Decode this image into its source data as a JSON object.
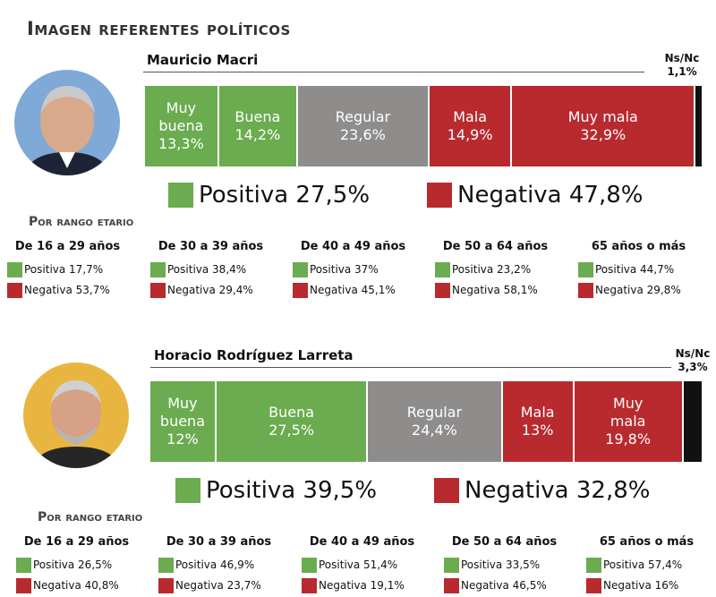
{
  "title": "Imagen referentes políticos",
  "colors": {
    "green": "#6aac4f",
    "gray": "#8f8c8c",
    "red": "#b82a2e",
    "black": "#111111"
  },
  "age_header": "Por rango etario",
  "chart_data": [
    {
      "type": "bar",
      "title": "Mauricio Macri",
      "categories": [
        "Muy buena",
        "Buena",
        "Regular",
        "Mala",
        "Muy mala",
        "Ns/Nc"
      ],
      "values": [
        13.3,
        14.2,
        23.6,
        14.9,
        32.9,
        1.1
      ],
      "labels": [
        "Muy\nbuena\n13,3%",
        "Buena\n14,2%",
        "Regular\n23,6%",
        "Mala\n14,9%",
        "Muy mala\n32,9%",
        ""
      ],
      "nsnc_label": "Ns/Nc\n1,1%",
      "summary": {
        "positive": "Positiva 27,5%",
        "negative": "Negativa 47,8%",
        "positive_value": 27.5,
        "negative_value": 47.8
      },
      "age_groups": [
        {
          "label": "De 16 a 29 años",
          "positive": "Positiva 17,7%",
          "negative": "Negativa 53,7%",
          "positive_value": 17.7,
          "negative_value": 53.7
        },
        {
          "label": "De 30 a 39 años",
          "positive": "Positiva 38,4%",
          "negative": "Negativa 29,4%",
          "positive_value": 38.4,
          "negative_value": 29.4
        },
        {
          "label": "De 40 a 49 años",
          "positive": "Positiva 37%",
          "negative": "Negativa 45,1%",
          "positive_value": 37,
          "negative_value": 45.1
        },
        {
          "label": "De 50 a 64 años",
          "positive": "Positiva 23,2%",
          "negative": "Negativa 58,1%",
          "positive_value": 23.2,
          "negative_value": 58.1
        },
        {
          "label": "65 años o más",
          "positive": "Positiva 44,7%",
          "negative": "Negativa 29,8%",
          "positive_value": 44.7,
          "negative_value": 29.8
        }
      ]
    },
    {
      "type": "bar",
      "title": "Horacio Rodríguez Larreta",
      "categories": [
        "Muy buena",
        "Buena",
        "Regular",
        "Mala",
        "Muy mala",
        "Ns/Nc"
      ],
      "values": [
        12,
        27.5,
        24.4,
        13,
        19.8,
        3.3
      ],
      "labels": [
        "Muy\nbuena\n12%",
        "Buena\n27,5%",
        "Regular\n24,4%",
        "Mala\n13%",
        "Muy\nmala\n19,8%",
        ""
      ],
      "nsnc_label": "Ns/Nc\n3,3%",
      "summary": {
        "positive": "Positiva 39,5%",
        "negative": "Negativa 32,8%",
        "positive_value": 39.5,
        "negative_value": 32.8
      },
      "age_groups": [
        {
          "label": "De 16 a 29 años",
          "positive": "Positiva 26,5%",
          "negative": "Negativa 40,8%",
          "positive_value": 26.5,
          "negative_value": 40.8
        },
        {
          "label": "De 30 a 39 años",
          "positive": "Positiva 46,9%",
          "negative": "Negativa 23,7%",
          "positive_value": 46.9,
          "negative_value": 23.7
        },
        {
          "label": "De 40 a 49 años",
          "positive": "Positiva 51,4%",
          "negative": "Negativa 19,1%",
          "positive_value": 51.4,
          "negative_value": 19.1
        },
        {
          "label": "De 50 a 64 años",
          "positive": "Positiva 33,5%",
          "negative": "Negativa 46,5%",
          "positive_value": 33.5,
          "negative_value": 46.5
        },
        {
          "label": "65 años o más",
          "positive": "Positiva 57,4%",
          "negative": "Negativa 16%",
          "positive_value": 57.4,
          "negative_value": 16
        }
      ]
    }
  ]
}
